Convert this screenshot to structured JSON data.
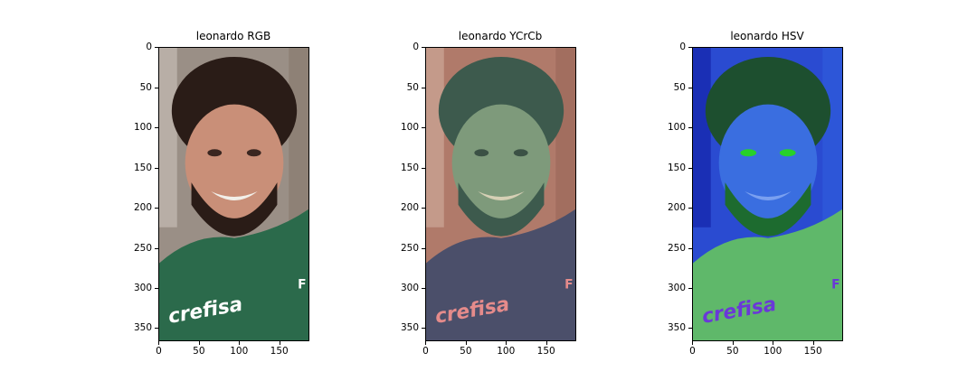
{
  "figure": {
    "panels": [
      {
        "title": "leonardo RGB",
        "colorspace": "RGB",
        "image_palette": {
          "background": "#9a8f86",
          "skin": "#c98f78",
          "hair": "#2a1c17",
          "shirt": "#2b6a4b",
          "shirt_text": "#ffffff"
        },
        "yticks": [
          "0",
          "50",
          "100",
          "150",
          "200",
          "250",
          "300",
          "350"
        ],
        "xticks": [
          "0",
          "50",
          "100",
          "150"
        ]
      },
      {
        "title": "leonardo YCrCb",
        "colorspace": "YCrCb",
        "image_palette": {
          "background": "#b07a6a",
          "skin": "#7e9a7b",
          "hair": "#3d5a4d",
          "shirt": "#4b4f6a",
          "shirt_text": "#e58b8b"
        },
        "yticks": [
          "0",
          "50",
          "100",
          "150",
          "200",
          "250",
          "300",
          "350"
        ],
        "xticks": [
          "0",
          "50",
          "100",
          "150"
        ]
      },
      {
        "title": "leonardo HSV",
        "colorspace": "HSV",
        "image_palette": {
          "background": "#2a4bd1",
          "skin": "#3a6ee0",
          "hair": "#1d4f2f",
          "shirt": "#5fb86a",
          "shirt_text": "#6a38d8",
          "edges": "#27d12a"
        },
        "yticks": [
          "0",
          "50",
          "100",
          "150",
          "200",
          "250",
          "300",
          "350"
        ],
        "xticks": [
          "0",
          "50",
          "100",
          "150"
        ]
      }
    ]
  }
}
